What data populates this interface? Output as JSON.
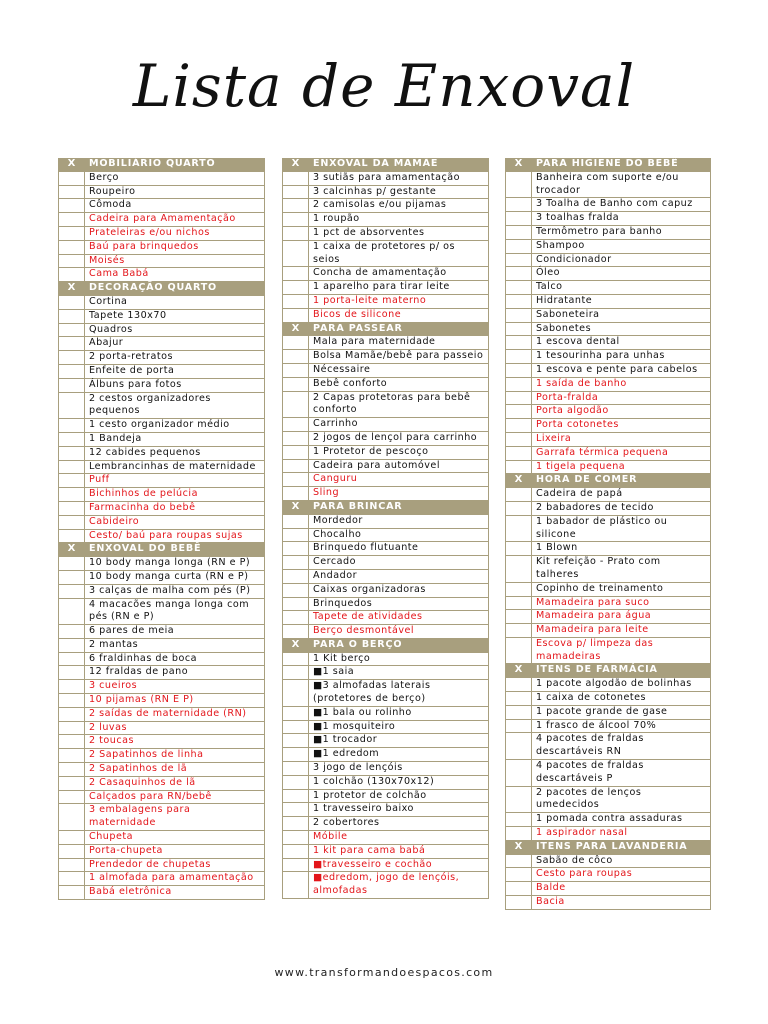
{
  "title": "Lista de Enxoval",
  "footer": "www.transformandoespacos.com",
  "colors": {
    "header_bg": "#a89f7e",
    "highlight_text": "#e3151a"
  },
  "columns": [
    {
      "sections": [
        {
          "check": "X",
          "title": "MOBILIÁRIO QUARTO",
          "items": [
            {
              "text": "Berço"
            },
            {
              "text": "Roupeiro"
            },
            {
              "text": "Cômoda"
            },
            {
              "text": "Cadeira para Amamentação",
              "red": true
            },
            {
              "text": "Prateleiras e/ou nichos",
              "red": true
            },
            {
              "text": "Baú para brinquedos",
              "red": true
            },
            {
              "text": "Moisés",
              "red": true
            },
            {
              "text": "Cama Babá",
              "red": true
            }
          ]
        },
        {
          "check": "X",
          "title": "DECORAÇÃO QUARTO",
          "items": [
            {
              "text": "Cortina"
            },
            {
              "text": "Tapete 130x70"
            },
            {
              "text": "Quadros"
            },
            {
              "text": "Abajur"
            },
            {
              "text": "2 porta-retratos"
            },
            {
              "text": "Enfeite de porta"
            },
            {
              "text": "Álbuns para fotos"
            },
            {
              "text": "2 cestos organizadores pequenos"
            },
            {
              "text": "1 cesto organizador médio"
            },
            {
              "text": "1 Bandeja"
            },
            {
              "text": "12 cabides pequenos"
            },
            {
              "text": "Lembrancinhas de maternidade"
            },
            {
              "text": "Puff",
              "red": true
            },
            {
              "text": "Bichinhos de pelúcia",
              "red": true
            },
            {
              "text": "Farmacinha do bebê",
              "red": true
            },
            {
              "text": "Cabideiro",
              "red": true
            },
            {
              "text": "Cesto/ baú para roupas sujas",
              "red": true
            }
          ]
        },
        {
          "check": "X",
          "title": "ENXOVAL DO BEBÊ",
          "items": [
            {
              "text": "10 body manga longa (RN e P)"
            },
            {
              "text": "10 body manga curta (RN e P)"
            },
            {
              "text": "3 calças de malha com pés (P)"
            },
            {
              "text": "4 macacões manga longa com pés (RN e P)"
            },
            {
              "text": "6 pares de meia"
            },
            {
              "text": "2 mantas"
            },
            {
              "text": "6 fraldinhas de boca"
            },
            {
              "text": "12 fraldas de pano"
            },
            {
              "text": "3 cueiros",
              "red": true
            },
            {
              "text": "10 pijamas (RN E P)",
              "red": true
            },
            {
              "text": "2 saídas de maternidade (RN)",
              "red": true
            },
            {
              "text": "2 luvas",
              "red": true
            },
            {
              "text": "2 toucas",
              "red": true
            },
            {
              "text": "2 Sapatinhos de linha",
              "red": true
            },
            {
              "text": "2 Sapatinhos de lã",
              "red": true
            },
            {
              "text": "2 Casaquinhos de lã",
              "red": true
            },
            {
              "text": "Calçados para RN/bebê",
              "red": true
            },
            {
              "text": "3 embalagens para maternidade",
              "red": true
            },
            {
              "text": "Chupeta",
              "red": true
            },
            {
              "text": "Porta-chupeta",
              "red": true
            },
            {
              "text": "Prendedor de chupetas",
              "red": true
            },
            {
              "text": "1 almofada para amamentação",
              "red": true
            },
            {
              "text": "Babá eletrônica",
              "red": true
            }
          ]
        }
      ]
    },
    {
      "sections": [
        {
          "check": "X",
          "title": "ENXOVAL DA MAMÃE",
          "items": [
            {
              "text": "3 sutiãs para amamentação"
            },
            {
              "text": "3 calcinhas p/ gestante"
            },
            {
              "text": "2 camisolas e/ou pijamas"
            },
            {
              "text": "1 roupão"
            },
            {
              "text": "1 pct de absorventes"
            },
            {
              "text": "1 caixa de protetores p/ os seios"
            },
            {
              "text": "Concha de amamentação"
            },
            {
              "text": "1 aparelho para tirar leite"
            },
            {
              "text": "1 porta-leite materno",
              "red": true
            },
            {
              "text": "Bicos de silicone",
              "red": true
            }
          ]
        },
        {
          "check": "X",
          "title": "PARA PASSEAR",
          "items": [
            {
              "text": "Mala para maternidade"
            },
            {
              "text": "Bolsa Mamãe/bebê para passeio"
            },
            {
              "text": "Nécessaire"
            },
            {
              "text": "Bebê conforto"
            },
            {
              "text": "2 Capas protetoras para bebê conforto"
            },
            {
              "text": "Carrinho"
            },
            {
              "text": "2 jogos de lençol para carrinho"
            },
            {
              "text": "1 Protetor de pescoço"
            },
            {
              "text": "Cadeira para automóvel"
            },
            {
              "text": "Canguru",
              "red": true
            },
            {
              "text": "Sling",
              "red": true
            }
          ]
        },
        {
          "check": "X",
          "title": "PARA BRINCAR",
          "items": [
            {
              "text": "Mordedor"
            },
            {
              "text": "Chocalho"
            },
            {
              "text": "Brinquedo flutuante"
            },
            {
              "text": "Cercado"
            },
            {
              "text": "Andador"
            },
            {
              "text": "Caixas organizadoras"
            },
            {
              "text": "Brinquedos"
            },
            {
              "text": "Tapete de atividades",
              "red": true
            },
            {
              "text": "Berço desmontável",
              "red": true
            }
          ]
        },
        {
          "check": "X",
          "title": "PARA O BERÇO",
          "items": [
            {
              "text": "1 Kit berço"
            },
            {
              "text": "■1 saia"
            },
            {
              "text": "■3 almofadas laterais (protetores de berço)"
            },
            {
              "text": "■1 bala ou rolinho"
            },
            {
              "text": "■1 mosquiteiro"
            },
            {
              "text": "■1 trocador"
            },
            {
              "text": "■1 edredom"
            },
            {
              "text": "3 jogo de lençóis"
            },
            {
              "text": "1 colchão (130x70x12)"
            },
            {
              "text": "1 protetor de colchão"
            },
            {
              "text": "1 travesseiro baixo"
            },
            {
              "text": "2 cobertores"
            },
            {
              "text": "Móbile",
              "red": true
            },
            {
              "text": "1 kit para cama babá",
              "red": true
            },
            {
              "text": "■travesseiro e cochão",
              "red": true
            },
            {
              "text": "■edredom, jogo de lençóis, almofadas",
              "red": true
            }
          ]
        }
      ]
    },
    {
      "sections": [
        {
          "check": "X",
          "title": "PARA HIGIENE DO BEBÊ",
          "items": [
            {
              "text": "Banheira com suporte e/ou trocador"
            },
            {
              "text": "3 Toalha de Banho com capuz"
            },
            {
              "text": "3 toalhas fralda"
            },
            {
              "text": "Termômetro para banho"
            },
            {
              "text": "Shampoo"
            },
            {
              "text": "Condicionador"
            },
            {
              "text": "Óleo"
            },
            {
              "text": "Talco"
            },
            {
              "text": "Hidratante"
            },
            {
              "text": "Saboneteira"
            },
            {
              "text": "Sabonetes"
            },
            {
              "text": "1 escova dental"
            },
            {
              "text": "1 tesourinha para unhas"
            },
            {
              "text": "1 escova e pente para cabelos"
            },
            {
              "text": "1 saída de banho",
              "red": true
            },
            {
              "text": "Porta-fralda",
              "red": true
            },
            {
              "text": "Porta algodão",
              "red": true
            },
            {
              "text": "Porta cotonetes",
              "red": true
            },
            {
              "text": "Lixeira",
              "red": true
            },
            {
              "text": "Garrafa térmica pequena",
              "red": true
            },
            {
              "text": "1 tigela pequena",
              "red": true
            }
          ]
        },
        {
          "check": "X",
          "title": "HORA DE COMER",
          "items": [
            {
              "text": "Cadeira de papá"
            },
            {
              "text": "2 babadores de tecido"
            },
            {
              "text": "1 babador de plástico ou silicone"
            },
            {
              "text": "1 Blown"
            },
            {
              "text": "Kit refeição - Prato com talheres"
            },
            {
              "text": "Copinho de treinamento"
            },
            {
              "text": "Mamadeira para suco",
              "red": true
            },
            {
              "text": "Mamadeira para água",
              "red": true
            },
            {
              "text": "Mamadeira para leite",
              "red": true
            },
            {
              "text": "Escova p/ limpeza das mamadeiras",
              "red": true
            }
          ]
        },
        {
          "check": "X",
          "title": "ITENS DE FARMÁCIA",
          "items": [
            {
              "text": "1 pacote algodão de bolinhas"
            },
            {
              "text": "1 caixa de cotonetes"
            },
            {
              "text": "1 pacote grande de gase"
            },
            {
              "text": "1 frasco de álcool 70%"
            },
            {
              "text": "4 pacotes de fraldas descartáveis RN"
            },
            {
              "text": "4 pacotes de fraldas descartáveis P"
            },
            {
              "text": "2 pacotes de lenços umedecidos"
            },
            {
              "text": "1 pomada contra assaduras"
            },
            {
              "text": "1 aspirador nasal",
              "red": true
            }
          ]
        },
        {
          "check": "X",
          "title": "ITENS PARA LAVANDERIA",
          "items": [
            {
              "text": "Sabão de côco"
            },
            {
              "text": "Cesto para roupas",
              "red": true
            },
            {
              "text": "Balde",
              "red": true
            },
            {
              "text": "Bacia",
              "red": true
            }
          ]
        }
      ]
    }
  ]
}
